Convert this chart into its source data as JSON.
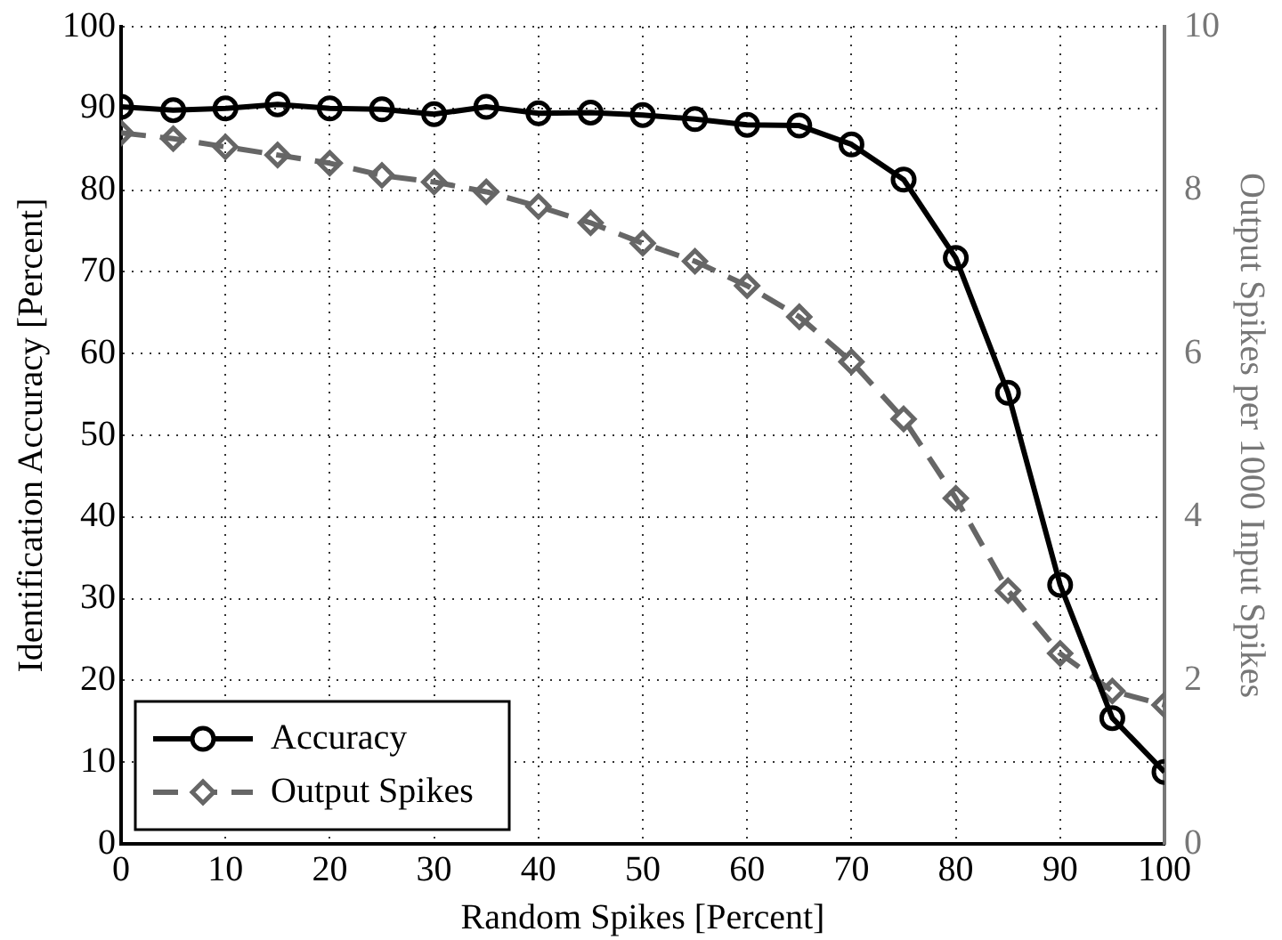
{
  "chart_data": {
    "type": "line",
    "xlabel": "Random Spikes [Percent]",
    "ylabel": "Identification Accuracy [Percent]",
    "y2label": "Output Spikes per 1000 Input Spikes",
    "x": [
      0,
      5,
      10,
      15,
      20,
      25,
      30,
      35,
      40,
      45,
      50,
      55,
      60,
      65,
      70,
      75,
      80,
      85,
      90,
      95,
      100
    ],
    "series": [
      {
        "name": "Accuracy",
        "color": "#000000",
        "marker": "circle",
        "line_style": "solid",
        "values": [
          90.2,
          89.8,
          90.0,
          90.5,
          90.0,
          89.9,
          89.3,
          90.2,
          89.4,
          89.5,
          89.2,
          88.7,
          88.0,
          87.9,
          85.6,
          81.3,
          71.7,
          55.2,
          31.7,
          15.4,
          8.8
        ]
      },
      {
        "name": "Output Spikes",
        "color": "#666666",
        "marker": "diamond",
        "line_style": "dashed",
        "axis": "y2",
        "values": [
          8.7,
          8.63,
          8.53,
          8.43,
          8.33,
          8.18,
          8.1,
          7.98,
          7.8,
          7.6,
          7.35,
          7.13,
          6.83,
          6.45,
          5.9,
          5.2,
          4.23,
          3.1,
          2.33,
          1.87,
          1.7
        ]
      }
    ],
    "xlim": [
      0,
      100
    ],
    "xticks": [
      0,
      10,
      20,
      30,
      40,
      50,
      60,
      70,
      80,
      90,
      100
    ],
    "ylim": [
      0,
      100
    ],
    "yticks": [
      0,
      10,
      20,
      30,
      40,
      50,
      60,
      70,
      80,
      90,
      100
    ],
    "y2lim": [
      0,
      10
    ],
    "y2ticks": [
      0,
      2,
      4,
      6,
      8,
      10
    ],
    "grid": true,
    "legend": "bottom left"
  }
}
